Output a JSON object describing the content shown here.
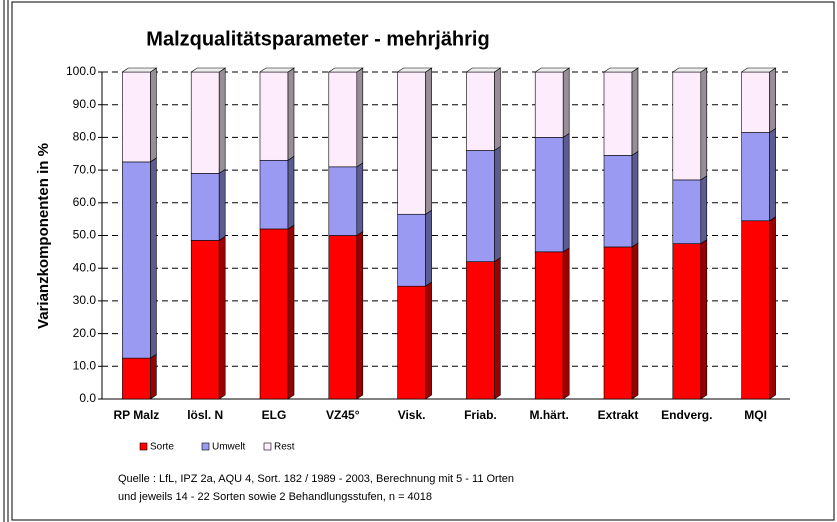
{
  "chart_data": {
    "type": "stacked_bar",
    "title": "Malzqualitätsparameter - mehrjährig",
    "y_label": "Varianzkomponenten  in  %",
    "categories": [
      "RP Malz",
      "lösl. N",
      "ELG",
      "VZ45°",
      "Visk.",
      "Friab.",
      "M.härt.",
      "Extrakt",
      "Endverg.",
      "MQI"
    ],
    "series": [
      {
        "name": "Sorte",
        "color": "#ff0000",
        "values": [
          12.5,
          48.5,
          52,
          50,
          34.5,
          42,
          45,
          46.5,
          47.5,
          54.5
        ]
      },
      {
        "name": "Umwelt",
        "color": "#9a9af2",
        "values": [
          60,
          20.5,
          21,
          21,
          22,
          34,
          35,
          28,
          19.5,
          27
        ]
      },
      {
        "name": "Rest",
        "color": "#fcecfc",
        "values": [
          27.5,
          31,
          27,
          29,
          43.5,
          24,
          20,
          25.5,
          33,
          18.5
        ]
      }
    ],
    "ylim": [
      0,
      100
    ],
    "yticks": [
      {
        "value": 0,
        "label": "0.0"
      },
      {
        "value": 10,
        "label": "10.0"
      },
      {
        "value": 20,
        "label": "20.0"
      },
      {
        "value": 30,
        "label": "30.0"
      },
      {
        "value": 40,
        "label": "40.0"
      },
      {
        "value": 50,
        "label": "50.0"
      },
      {
        "value": 60,
        "label": "60.0"
      },
      {
        "value": 70,
        "label": "70.0"
      },
      {
        "value": 80,
        "label": "80.0"
      },
      {
        "value": 90,
        "label": "90.0"
      },
      {
        "value": 100,
        "label": "100.0"
      }
    ],
    "grid": true,
    "legend": "bottom",
    "notes": [
      "Quelle : LfL, IPZ 2a, AQU 4, Sort. 182 / 1989 - 2003, Berechnung mit 5 - 11 Orten",
      "und jeweils 14 - 22 Sorten  sowie 2 Behandlungsstufen,   n = 4018"
    ]
  }
}
